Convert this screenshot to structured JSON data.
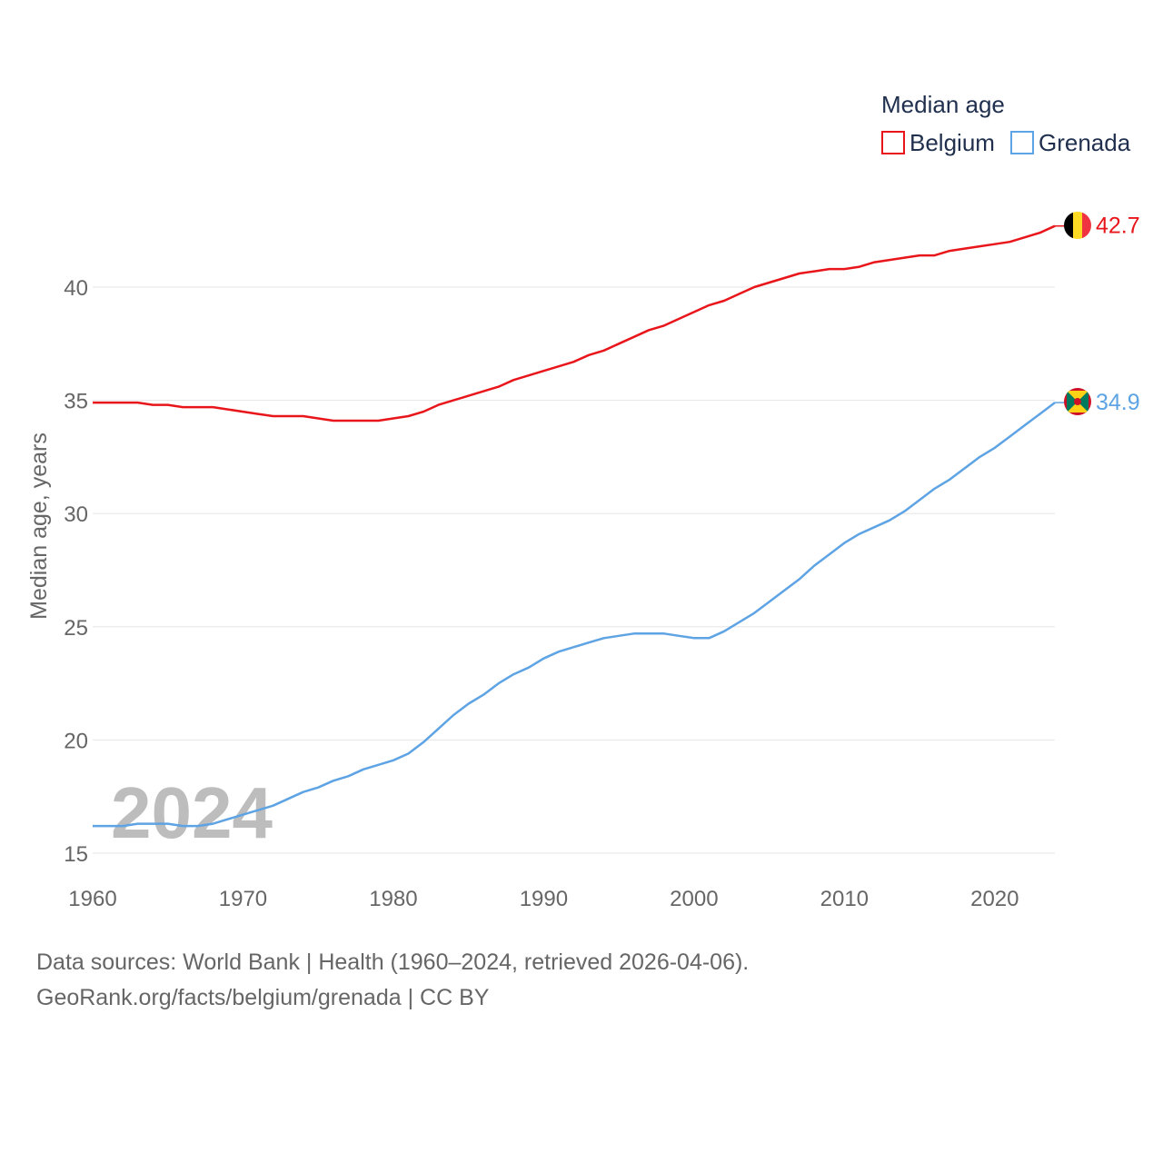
{
  "chart_data": {
    "type": "line",
    "title": "Median age",
    "ylabel": "Median age, years",
    "xlabel": "",
    "xlim": [
      1960,
      2024
    ],
    "ylim": [
      15,
      42.7
    ],
    "yticks": [
      15,
      20,
      25,
      30,
      35,
      40
    ],
    "xticks": [
      1960,
      1970,
      1980,
      1990,
      2000,
      2010,
      2020
    ],
    "grid": true,
    "legend_position": "top-right",
    "watermark_year": "2024",
    "x": [
      1960,
      1961,
      1962,
      1963,
      1964,
      1965,
      1966,
      1967,
      1968,
      1969,
      1970,
      1971,
      1972,
      1973,
      1974,
      1975,
      1976,
      1977,
      1978,
      1979,
      1980,
      1981,
      1982,
      1983,
      1984,
      1985,
      1986,
      1987,
      1988,
      1989,
      1990,
      1991,
      1992,
      1993,
      1994,
      1995,
      1996,
      1997,
      1998,
      1999,
      2000,
      2001,
      2002,
      2003,
      2004,
      2005,
      2006,
      2007,
      2008,
      2009,
      2010,
      2011,
      2012,
      2013,
      2014,
      2015,
      2016,
      2017,
      2018,
      2019,
      2020,
      2021,
      2022,
      2023,
      2024
    ],
    "series": [
      {
        "name": "Belgium",
        "color": "#e8161b",
        "end_label": "42.7",
        "flag": "belgium-flag",
        "values": [
          34.9,
          34.9,
          34.9,
          34.9,
          34.8,
          34.8,
          34.7,
          34.7,
          34.7,
          34.6,
          34.5,
          34.4,
          34.3,
          34.3,
          34.3,
          34.2,
          34.1,
          34.1,
          34.1,
          34.1,
          34.2,
          34.3,
          34.5,
          34.8,
          35.0,
          35.2,
          35.4,
          35.6,
          35.9,
          36.1,
          36.3,
          36.5,
          36.7,
          37.0,
          37.2,
          37.5,
          37.8,
          38.1,
          38.3,
          38.6,
          38.9,
          39.2,
          39.4,
          39.7,
          40.0,
          40.2,
          40.4,
          40.6,
          40.7,
          40.8,
          40.8,
          40.9,
          41.1,
          41.2,
          41.3,
          41.4,
          41.4,
          41.6,
          41.7,
          41.8,
          41.9,
          42.0,
          42.2,
          42.4,
          42.7
        ]
      },
      {
        "name": "Grenada",
        "color": "#5ea3e3",
        "end_label": "34.9",
        "flag": "grenada-flag",
        "values": [
          16.2,
          16.2,
          16.2,
          16.3,
          16.3,
          16.3,
          16.2,
          16.2,
          16.3,
          16.5,
          16.7,
          16.9,
          17.1,
          17.4,
          17.7,
          17.9,
          18.2,
          18.4,
          18.7,
          18.9,
          19.1,
          19.4,
          19.9,
          20.5,
          21.1,
          21.6,
          22.0,
          22.5,
          22.9,
          23.2,
          23.6,
          23.9,
          24.1,
          24.3,
          24.5,
          24.6,
          24.7,
          24.7,
          24.7,
          24.6,
          24.5,
          24.5,
          24.8,
          25.2,
          25.6,
          26.1,
          26.6,
          27.1,
          27.7,
          28.2,
          28.7,
          29.1,
          29.4,
          29.7,
          30.1,
          30.6,
          31.1,
          31.5,
          32.0,
          32.5,
          32.9,
          33.4,
          33.9,
          34.4,
          34.9
        ]
      }
    ]
  },
  "footer": {
    "line1": "Data sources: World Bank | Health (1960–2024, retrieved 2026-04-06).",
    "line2": "GeoRank.org/facts/belgium/grenada | CC BY"
  }
}
